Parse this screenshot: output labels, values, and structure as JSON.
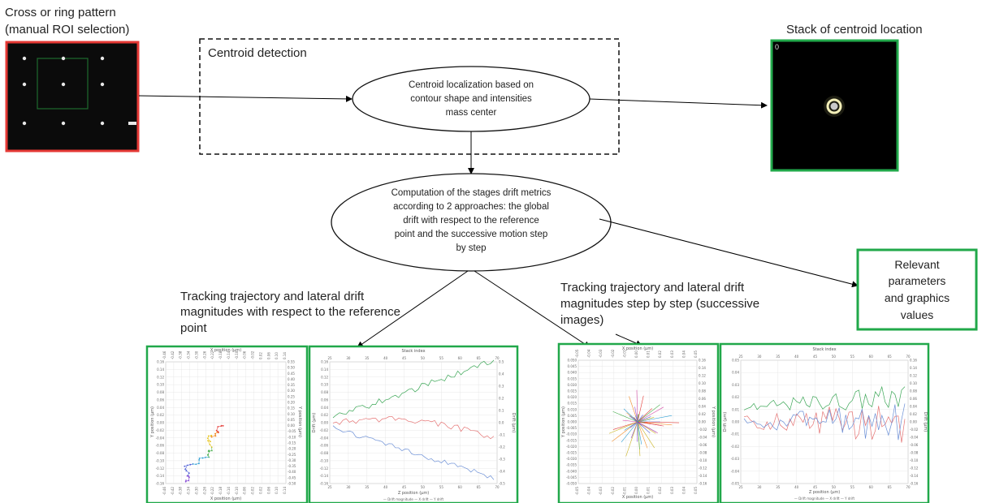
{
  "top_left_label": [
    "Cross or ring pattern",
    " (manual ROI selection)"
  ],
  "top_right_label": "Stack of centroid location",
  "stack_counter": "0",
  "centroid_box_title": "Centroid detection",
  "centroid_ellipse_text": [
    "Centroid localization based on",
    "contour shape and intensities",
    "mass center"
  ],
  "computation_ellipse_text": [
    "Computation of the stages drift metrics",
    "according to 2 approaches: the global",
    "drift with respect to the reference",
    "point and the successive motion step",
    "by step"
  ],
  "relevant_box_text": [
    "Relevant",
    "parameters",
    "and graphics",
    "values"
  ],
  "left_caption": [
    "Tracking trajectory and lateral drift",
    "magnitudes with respect to the reference",
    "point"
  ],
  "right_caption": [
    "Tracking trajectory and lateral drift",
    "magnitudes step by step (successive",
    "images)"
  ],
  "colors": {
    "red_frame": "#e53935",
    "green_frame": "#21a84a",
    "drift_magnitude": "#3aa655",
    "x_drift": "#e57373",
    "y_drift": "#6b8fd6"
  },
  "charts": {
    "ref_scatter": {
      "xlabel_top": "X position (µm)",
      "xlabel_bottom": "X position (µm)",
      "ylabel_left": "Y position (µm)",
      "ylabel_right": "Y position (µm)",
      "x_ticks": [
        "-0.46",
        "-0.42",
        "-0.38",
        "-0.34",
        "-0.30",
        "-0.26",
        "-0.22",
        "-0.18",
        "-0.14",
        "-0.10",
        "-0.06",
        "-0.02",
        "0.02",
        "0.06",
        "0.10",
        "0.14"
      ],
      "y_ticks_left": [
        "0.16",
        "0.14",
        "0.12",
        "0.10",
        "0.08",
        "0.06",
        "0.04",
        "0.02",
        "0.00",
        "-0.02",
        "-0.04",
        "-0.06",
        "-0.08",
        "-0.10",
        "-0.12",
        "-0.14",
        "-0.16"
      ],
      "y_ticks_right": [
        "0.55",
        "0.50",
        "0.45",
        "0.40",
        "0.35",
        "0.30",
        "0.25",
        "0.20",
        "0.15",
        "0.10",
        "0.05",
        "0.00",
        "-0.05",
        "-0.10",
        "-0.15",
        "-0.20",
        "-0.25",
        "-0.30",
        "-0.35",
        "-0.40",
        "-0.45",
        "-0.50"
      ]
    },
    "ref_drift": {
      "title_top": "Stack index",
      "xlabel": "Z position (µm)",
      "ylabel_left": "Drift (µm)",
      "ylabel_right": "Drift (µm)",
      "x_ticks": [
        "25",
        "30",
        "35",
        "40",
        "45",
        "50",
        "55",
        "60",
        "65",
        "70"
      ],
      "y_ticks_left": [
        "0.16",
        "0.14",
        "0.12",
        "0.10",
        "0.08",
        "0.06",
        "0.04",
        "0.02",
        "0.00",
        "-0.02",
        "-0.04",
        "-0.06",
        "-0.08",
        "-0.10",
        "-0.12",
        "-0.14",
        "-0.16"
      ],
      "y_ticks_right": [
        "0.5",
        "0.4",
        "0.3",
        "0.2",
        "0.1",
        "0.0",
        "-0.1",
        "-0.2",
        "-0.3",
        "-0.4",
        "-0.5"
      ],
      "legend": "— Drift magnitude — X drift — Y drift"
    },
    "step_scatter": {
      "xlabel_top": "X position (µm)",
      "xlabel_bottom": "X position (µm)",
      "ylabel_left": "Y position (µm)",
      "ylabel_right": "Y position (µm)",
      "x_ticks": [
        "-0.05",
        "-0.04",
        "-0.03",
        "-0.02",
        "-0.01",
        "0.00",
        "0.01",
        "0.02",
        "0.03",
        "0.04",
        "0.05"
      ],
      "y_ticks_left": [
        "0.050",
        "0.045",
        "0.040",
        "0.035",
        "0.030",
        "0.025",
        "0.020",
        "0.015",
        "0.010",
        "0.005",
        "0.000",
        "-0.005",
        "-0.010",
        "-0.015",
        "-0.020",
        "-0.025",
        "-0.030",
        "-0.035",
        "-0.040",
        "-0.045",
        "-0.050"
      ],
      "y_ticks_right": [
        "0.16",
        "0.14",
        "0.12",
        "0.10",
        "0.08",
        "0.06",
        "0.04",
        "0.02",
        "0.00",
        "-0.02",
        "-0.04",
        "-0.06",
        "-0.08",
        "-0.10",
        "-0.12",
        "-0.14",
        "-0.16"
      ]
    },
    "step_drift": {
      "title_top": "Stack index",
      "xlabel": "Z position (µm)",
      "ylabel_left": "Drift (µm)",
      "ylabel_right": "Drift (µm)",
      "x_ticks": [
        "25",
        "30",
        "35",
        "40",
        "45",
        "50",
        "55",
        "60",
        "65",
        "70"
      ],
      "y_ticks_left": [
        "0.05",
        "0.04",
        "0.03",
        "0.02",
        "0.01",
        "0.00",
        "-0.01",
        "-0.02",
        "-0.03",
        "-0.04",
        "-0.05"
      ],
      "y_ticks_right": [
        "0.16",
        "0.14",
        "0.12",
        "0.10",
        "0.08",
        "0.06",
        "0.04",
        "0.02",
        "0.00",
        "-0.02",
        "-0.04",
        "-0.06",
        "-0.08",
        "-0.10",
        "-0.12",
        "-0.14",
        "-0.16"
      ],
      "legend": "— Drift magnitude — X drift — Y drift"
    }
  }
}
